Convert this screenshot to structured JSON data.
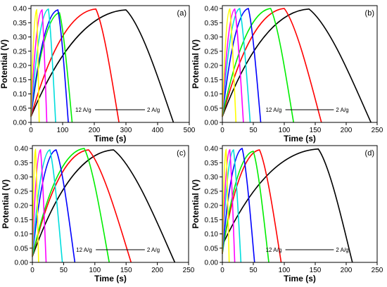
{
  "chart_data": [
    {
      "type": "line",
      "panel_label": "(a)",
      "xlabel": "Time (s)",
      "ylabel": "Potential (V)",
      "xlim": [
        0,
        500
      ],
      "ylim": [
        0,
        0.41
      ],
      "xticks": [
        0,
        100,
        200,
        300,
        400,
        500
      ],
      "yticks": [
        0.0,
        0.05,
        0.1,
        0.15,
        0.2,
        0.25,
        0.3,
        0.35,
        0.4
      ],
      "annotation_left": "12 A/g",
      "annotation_right": "2 A/g",
      "series": [
        {
          "color": "#000000",
          "x": [
            0,
            300,
            450
          ],
          "y": [
            0.02,
            0.395,
            0.0
          ]
        },
        {
          "color": "#ff0000",
          "x": [
            0,
            205,
            278
          ],
          "y": [
            0.02,
            0.398,
            0.0
          ]
        },
        {
          "color": "#00ee00",
          "x": [
            0,
            90,
            130
          ],
          "y": [
            0.02,
            0.385,
            0.0
          ]
        },
        {
          "color": "#0000ff",
          "x": [
            0,
            85,
            118
          ],
          "y": [
            0.02,
            0.395,
            0.0
          ]
        },
        {
          "color": "#00dddd",
          "x": [
            0,
            55,
            78
          ],
          "y": [
            0.02,
            0.398,
            0.0
          ]
        },
        {
          "color": "#ff00ff",
          "x": [
            0,
            35,
            50
          ],
          "y": [
            0.02,
            0.395,
            0.0
          ]
        },
        {
          "color": "#ffff00",
          "x": [
            0,
            18,
            26
          ],
          "y": [
            0.02,
            0.395,
            0.0
          ]
        }
      ]
    },
    {
      "type": "line",
      "panel_label": "(b)",
      "xlabel": "Time (s)",
      "ylabel": "Potential (V)",
      "xlim": [
        0,
        250
      ],
      "ylim": [
        0,
        0.41
      ],
      "xticks": [
        0,
        50,
        100,
        150,
        200,
        250
      ],
      "yticks": [
        0.0,
        0.05,
        0.1,
        0.15,
        0.2,
        0.25,
        0.3,
        0.35,
        0.4
      ],
      "annotation_left": "12 A/g",
      "annotation_right": "2 A/g",
      "series": [
        {
          "color": "#000000",
          "x": [
            0,
            140,
            240
          ],
          "y": [
            0.02,
            0.398,
            0.0
          ]
        },
        {
          "color": "#ff0000",
          "x": [
            0,
            100,
            160
          ],
          "y": [
            0.02,
            0.4,
            0.0
          ]
        },
        {
          "color": "#00ee00",
          "x": [
            0,
            78,
            115
          ],
          "y": [
            0.02,
            0.4,
            0.0
          ]
        },
        {
          "color": "#0000ff",
          "x": [
            0,
            42,
            62
          ],
          "y": [
            0.02,
            0.4,
            0.0
          ]
        },
        {
          "color": "#00dddd",
          "x": [
            0,
            28,
            45
          ],
          "y": [
            0.02,
            0.4,
            0.0
          ]
        },
        {
          "color": "#ff00ff",
          "x": [
            0,
            20,
            34
          ],
          "y": [
            0.02,
            0.398,
            0.0
          ]
        },
        {
          "color": "#ffff00",
          "x": [
            0,
            12,
            22
          ],
          "y": [
            0.02,
            0.398,
            0.0
          ]
        }
      ]
    },
    {
      "type": "line",
      "panel_label": "(c)",
      "xlabel": "Time (s)",
      "ylabel": "Potential (V)",
      "xlim": [
        0,
        250
      ],
      "ylim": [
        0,
        0.41
      ],
      "xticks": [
        0,
        50,
        100,
        150,
        200,
        250
      ],
      "yticks": [
        0.0,
        0.05,
        0.1,
        0.15,
        0.2,
        0.25,
        0.3,
        0.35,
        0.4
      ],
      "annotation_left": "12 A/g",
      "annotation_right": "2 A/g",
      "series": [
        {
          "color": "#000000",
          "x": [
            0,
            130,
            228
          ],
          "y": [
            0.02,
            0.395,
            0.0
          ]
        },
        {
          "color": "#ff0000",
          "x": [
            0,
            90,
            158
          ],
          "y": [
            0.02,
            0.395,
            0.0
          ]
        },
        {
          "color": "#00ee00",
          "x": [
            0,
            83,
            123
          ],
          "y": [
            0.02,
            0.4,
            0.0
          ]
        },
        {
          "color": "#0000ff",
          "x": [
            0,
            38,
            68
          ],
          "y": [
            0.02,
            0.395,
            0.0
          ]
        },
        {
          "color": "#00dddd",
          "x": [
            0,
            28,
            48
          ],
          "y": [
            0.02,
            0.395,
            0.0
          ]
        },
        {
          "color": "#ff00ff",
          "x": [
            0,
            13,
            22
          ],
          "y": [
            0.02,
            0.395,
            0.0
          ]
        },
        {
          "color": "#ffff00",
          "x": [
            0,
            5,
            10
          ],
          "y": [
            0.02,
            0.395,
            0.0
          ]
        }
      ]
    },
    {
      "type": "line",
      "panel_label": "(d)",
      "xlabel": "Time (s)",
      "ylabel": "Potential (V)",
      "xlim": [
        0,
        250
      ],
      "ylim": [
        0,
        0.41
      ],
      "xticks": [
        0,
        50,
        100,
        150,
        200,
        250
      ],
      "yticks": [
        0.0,
        0.05,
        0.1,
        0.15,
        0.2,
        0.25,
        0.3,
        0.35,
        0.4
      ],
      "annotation_left": "12 A/g",
      "annotation_right": "2 A/g",
      "series": [
        {
          "color": "#000000",
          "x": [
            0,
            155,
            210
          ],
          "y": [
            0.06,
            0.398,
            0.0
          ]
        },
        {
          "color": "#ff0000",
          "x": [
            0,
            60,
            95
          ],
          "y": [
            0.04,
            0.395,
            0.0
          ]
        },
        {
          "color": "#00ee00",
          "x": [
            0,
            50,
            75
          ],
          "y": [
            0.03,
            0.39,
            0.0
          ]
        },
        {
          "color": "#0000ff",
          "x": [
            0,
            32,
            52
          ],
          "y": [
            0.03,
            0.4,
            0.0
          ]
        },
        {
          "color": "#00dddd",
          "x": [
            0,
            18,
            30
          ],
          "y": [
            0.03,
            0.395,
            0.0
          ]
        },
        {
          "color": "#ff00ff",
          "x": [
            0,
            12,
            20
          ],
          "y": [
            0.03,
            0.395,
            0.0
          ]
        },
        {
          "color": "#ffff00",
          "x": [
            0,
            6,
            11
          ],
          "y": [
            0.03,
            0.395,
            0.0
          ]
        }
      ]
    }
  ]
}
